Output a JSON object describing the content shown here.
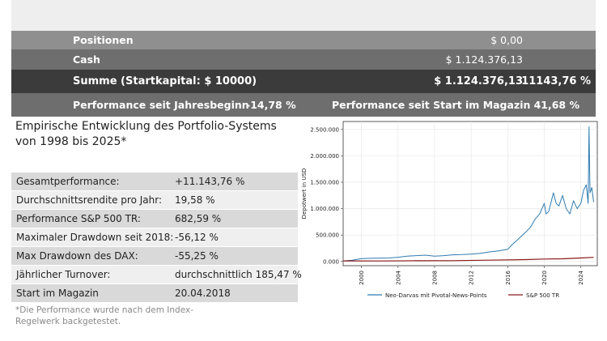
{
  "summary": {
    "positions": {
      "label": "Positionen",
      "value": "$ 0,00"
    },
    "cash": {
      "label": "Cash",
      "value": "$ 1.124.376,13"
    },
    "sum": {
      "label": "Summe (Startkapital: $ 10000)",
      "value": "$ 1.124.376,13",
      "percent": "11143,76 %"
    },
    "performance": {
      "ytd_label": "Performance seit Jahresbeginn",
      "ytd_value": "-14,78 %",
      "since_start_label": "Performance seit Start im Magazin",
      "since_start_value": "41,68 %"
    }
  },
  "section_title": "Empirische Entwicklung des Portfolio-Systems von 1998 bis 2025*",
  "stats": [
    {
      "label": "Gesamtperformance:",
      "value": "+11.143,76 %"
    },
    {
      "label": "Durchschnittsrendite pro Jahr:",
      "value": "19,58 %"
    },
    {
      "label": "Performance S&P 500 TR:",
      "value": "682,59 %"
    },
    {
      "label": "Maximaler Drawdown seit 2018:",
      "value": "-56,12 %"
    },
    {
      "label": "Max Drawdown des DAX:",
      "value": "-55,25 %"
    },
    {
      "label": "Jährlicher Turnover:",
      "value": "durchschnittlich 185,47 %"
    },
    {
      "label": "Start im Magazin",
      "value": "20.04.2018"
    }
  ],
  "footnote": "*Die Performance wurde nach dem Index-Regelwerk backgetestet.",
  "chart_data": {
    "type": "line",
    "ylabel": "Depotwert in USD",
    "ylim": [
      -80000,
      2650000
    ],
    "xlim": [
      1998.0,
      2025.8
    ],
    "yticks": [
      0,
      500000,
      1000000,
      1500000,
      2000000,
      2500000
    ],
    "ytick_labels": [
      "0.000",
      "500.000",
      "1.000.000",
      "1.500.000",
      "2.000.000",
      "2.500.000"
    ],
    "xticks": [
      2000,
      2004,
      2008,
      2012,
      2016,
      2020,
      2024
    ],
    "xtick_labels": [
      "2000",
      "2004",
      "2008",
      "2012",
      "2016",
      "2020",
      "2024"
    ],
    "grid": true,
    "legend": "bottom",
    "series": [
      {
        "name": "Neo-Darvas mit Pivotal-News-Points",
        "color": "#2e7bb0",
        "x": [
          1998.0,
          1999.0,
          2000.0,
          2001.0,
          2002.0,
          2003.0,
          2004.0,
          2005.0,
          2006.0,
          2007.0,
          2008.0,
          2009.0,
          2010.0,
          2011.0,
          2012.0,
          2013.0,
          2014.0,
          2015.0,
          2016.0,
          2016.5,
          2017.0,
          2017.5,
          2018.0,
          2018.5,
          2019.0,
          2019.5,
          2020.0,
          2020.2,
          2020.5,
          2021.0,
          2021.3,
          2021.6,
          2022.0,
          2022.4,
          2022.8,
          2023.2,
          2023.6,
          2024.0,
          2024.3,
          2024.6,
          2024.8,
          2024.9,
          2025.0,
          2025.2,
          2025.4
        ],
        "values": [
          10000,
          25000,
          55000,
          60000,
          62000,
          65000,
          80000,
          100000,
          110000,
          120000,
          100000,
          110000,
          125000,
          130000,
          140000,
          155000,
          180000,
          200000,
          230000,
          320000,
          400000,
          480000,
          560000,
          650000,
          800000,
          900000,
          1100000,
          900000,
          950000,
          1300000,
          1100000,
          1050000,
          1250000,
          1000000,
          900000,
          1150000,
          1000000,
          1100000,
          1350000,
          1450000,
          1100000,
          2550000,
          1300000,
          1400000,
          1124376
        ]
      },
      {
        "name": "S&P 500 TR",
        "color": "#8b1a1a",
        "x": [
          1998,
          2002,
          2006,
          2010,
          2014,
          2018,
          2020,
          2022,
          2024,
          2025.4
        ],
        "values": [
          10000,
          9000,
          14000,
          15000,
          25000,
          35000,
          45000,
          50000,
          65000,
          78000
        ]
      }
    ]
  }
}
